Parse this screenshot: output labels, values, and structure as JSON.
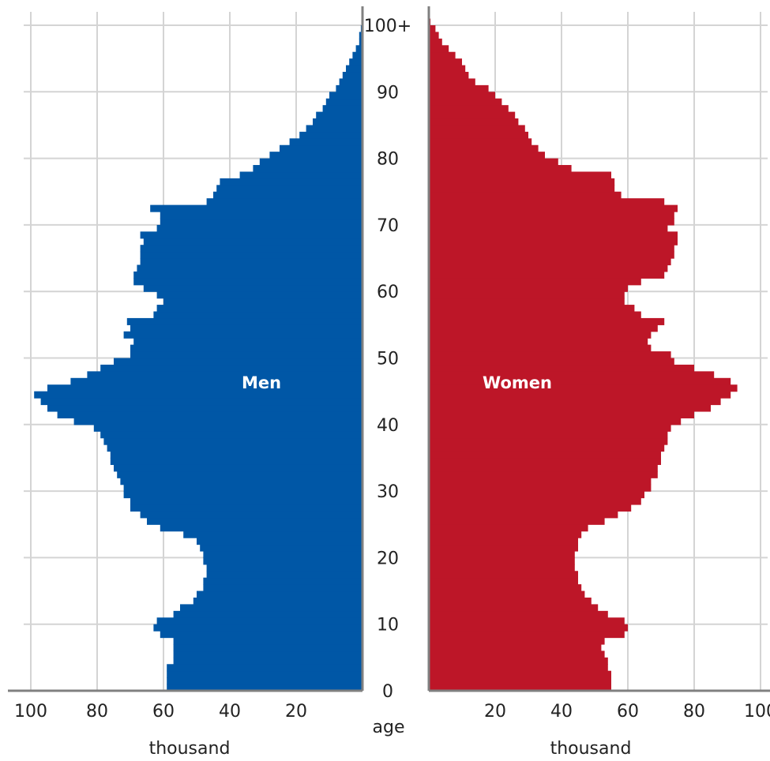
{
  "chart_data": {
    "type": "bar",
    "orientation": "horizontal",
    "chart_kind": "population-pyramid",
    "colors": {
      "men": "#0057a6",
      "women": "#bd1628",
      "grid": "#d4d4d4",
      "axis": "#808080"
    },
    "xlabel_left": "thousand",
    "xlabel_right": "thousand",
    "center_axis_label": "age",
    "x_ticks": [
      100,
      80,
      60,
      40,
      20
    ],
    "xlim": [
      0,
      100
    ],
    "y_ticks": [
      {
        "age": 0,
        "label": "0"
      },
      {
        "age": 10,
        "label": "10"
      },
      {
        "age": 20,
        "label": "20"
      },
      {
        "age": 30,
        "label": "30"
      },
      {
        "age": 40,
        "label": "40"
      },
      {
        "age": 50,
        "label": "50"
      },
      {
        "age": 60,
        "label": "60"
      },
      {
        "age": 70,
        "label": "70"
      },
      {
        "age": 80,
        "label": "80"
      },
      {
        "age": 90,
        "label": "90"
      },
      {
        "age": 100,
        "label": "100+"
      }
    ],
    "ages": [
      0,
      1,
      2,
      3,
      4,
      5,
      6,
      7,
      8,
      9,
      10,
      11,
      12,
      13,
      14,
      15,
      16,
      17,
      18,
      19,
      20,
      21,
      22,
      23,
      24,
      25,
      26,
      27,
      28,
      29,
      30,
      31,
      32,
      33,
      34,
      35,
      36,
      37,
      38,
      39,
      40,
      41,
      42,
      43,
      44,
      45,
      46,
      47,
      48,
      49,
      50,
      51,
      52,
      53,
      54,
      55,
      56,
      57,
      58,
      59,
      60,
      61,
      62,
      63,
      64,
      65,
      66,
      67,
      68,
      69,
      70,
      71,
      72,
      73,
      74,
      75,
      76,
      77,
      78,
      79,
      80,
      81,
      82,
      83,
      84,
      85,
      86,
      87,
      88,
      89,
      90,
      91,
      92,
      93,
      94,
      95,
      96,
      97,
      98,
      99,
      100
    ],
    "series": [
      {
        "name": "Men",
        "values": [
          59,
          59,
          59,
          59,
          57,
          57,
          57,
          57,
          61,
          63,
          62,
          57,
          55,
          51,
          50,
          48,
          48,
          47,
          47,
          48,
          48,
          49,
          50,
          54,
          61,
          65,
          67,
          70,
          70,
          72,
          72,
          73,
          74,
          75,
          76,
          76,
          77,
          78,
          79,
          81,
          87,
          92,
          95,
          97,
          99,
          95,
          88,
          83,
          79,
          75,
          70,
          70,
          69,
          72,
          70,
          71,
          63,
          62,
          60,
          62,
          66,
          69,
          69,
          68,
          67,
          67,
          67,
          66,
          67,
          62,
          61,
          61,
          64,
          47,
          45,
          44,
          43,
          37,
          33,
          31,
          28,
          25,
          22,
          19,
          17,
          15,
          14,
          12,
          11,
          10,
          8,
          7,
          6,
          5,
          4,
          3,
          2,
          1,
          1,
          0.5,
          0
        ]
      },
      {
        "name": "Women",
        "values": [
          55,
          55,
          55,
          54,
          54,
          53,
          52,
          53,
          59,
          60,
          59,
          54,
          51,
          49,
          47,
          46,
          45,
          45,
          44,
          44,
          44,
          45,
          45,
          46,
          48,
          53,
          57,
          61,
          64,
          65,
          67,
          67,
          69,
          69,
          70,
          70,
          71,
          72,
          72,
          73,
          76,
          80,
          85,
          88,
          91,
          93,
          91,
          86,
          80,
          74,
          73,
          67,
          66,
          67,
          69,
          71,
          64,
          62,
          59,
          59,
          60,
          64,
          71,
          72,
          73,
          74,
          74,
          75,
          75,
          72,
          74,
          74,
          75,
          71,
          58,
          56,
          56,
          55,
          43,
          39,
          35,
          33,
          31,
          30,
          29,
          27,
          26,
          24,
          22,
          20,
          18,
          14,
          12,
          11,
          10,
          8,
          6,
          4,
          3,
          2,
          0.5
        ]
      }
    ],
    "grid": true
  }
}
